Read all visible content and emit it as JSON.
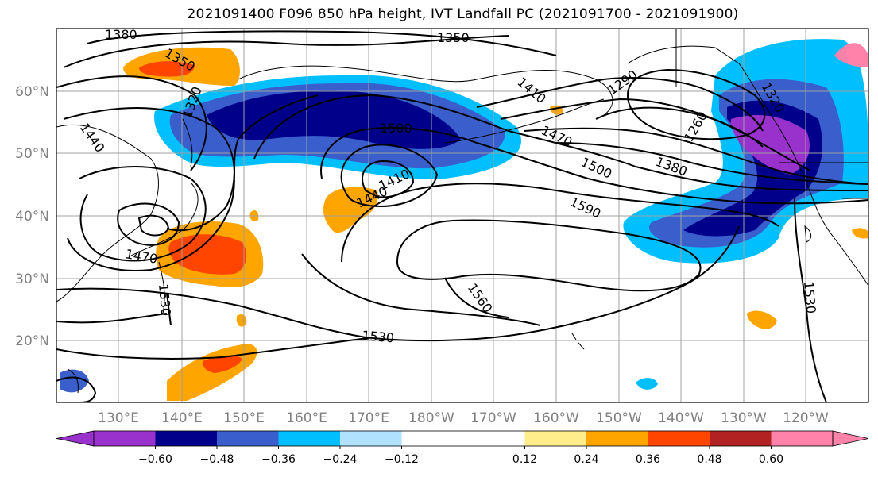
{
  "title": "2021091400 F096 850 hPa height, IVT Landfall PC (2021091700 - 2021091900)",
  "axes": {
    "lon_labels": [
      "130°E",
      "140°E",
      "150°E",
      "160°E",
      "170°E",
      "180°W",
      "170°W",
      "160°W",
      "150°W",
      "140°W",
      "130°W",
      "120°W"
    ],
    "lat_labels": [
      "60°N",
      "50°N",
      "40°N",
      "30°N",
      "20°N"
    ]
  },
  "contour_labels": [
    "1380",
    "1350",
    "1350",
    "1320",
    "1440",
    "1410",
    "1290",
    "1320",
    "1260",
    "1500",
    "1470",
    "1500",
    "1380",
    "1440",
    "1410",
    "1590",
    "1470",
    "1530",
    "1560",
    "1530",
    "1530"
  ],
  "colorbar": {
    "colors": [
      "#9932cc",
      "#00008b",
      "#3a5fcd",
      "#00bfff",
      "#b0e2ff",
      "#ffffff",
      "#ffffff",
      "#ffec8b",
      "#ffa500",
      "#ff4500",
      "#b22222",
      "#ff82ab"
    ],
    "tick_labels": [
      "−0.60",
      "−0.48",
      "−0.36",
      "−0.24",
      "−0.12",
      "0.12",
      "0.24",
      "0.36",
      "0.48",
      "0.60"
    ]
  }
}
